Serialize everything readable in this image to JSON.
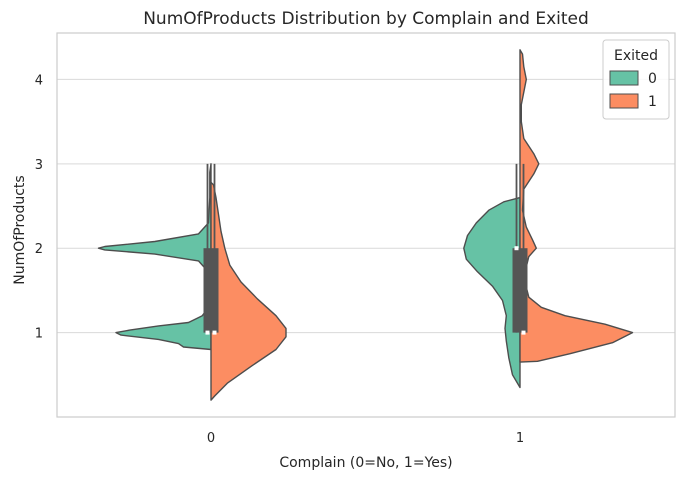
{
  "chart_data": {
    "type": "violin",
    "title": "NumOfProducts Distribution by Complain and Exited",
    "xlabel": "Complain (0=No, 1=Yes)",
    "ylabel": "NumOfProducts",
    "categories": [
      "0",
      "1"
    ],
    "y_ticks": [
      "1",
      "2",
      "3",
      "4"
    ],
    "ylim": [
      0.0,
      4.55
    ],
    "grid": true,
    "legend": {
      "title": "Exited",
      "placement": "top-right",
      "entries": [
        "0",
        "1"
      ]
    },
    "colors": {
      "0": "#66c2a5",
      "1": "#fc8d62",
      "outline": "#4d4d4d",
      "box": "#555555"
    },
    "split": true,
    "series": [
      {
        "name": "0",
        "violins": [
          {
            "category": "0",
            "y_range": [
              0.8,
              3.0
            ],
            "density": [
              [
                0.8,
                0.0
              ],
              [
                0.83,
                0.22
              ],
              [
                0.87,
                0.26
              ],
              [
                0.92,
                0.42
              ],
              [
                0.97,
                0.72
              ],
              [
                1.0,
                0.76
              ],
              [
                1.03,
                0.65
              ],
              [
                1.08,
                0.42
              ],
              [
                1.12,
                0.18
              ],
              [
                1.2,
                0.07
              ],
              [
                1.3,
                0.02
              ],
              [
                1.5,
                0.01
              ],
              [
                1.7,
                0.01
              ],
              [
                1.85,
                0.1
              ],
              [
                1.93,
                0.45
              ],
              [
                1.98,
                0.85
              ],
              [
                2.0,
                0.9
              ],
              [
                2.02,
                0.85
              ],
              [
                2.08,
                0.45
              ],
              [
                2.17,
                0.1
              ],
              [
                2.3,
                0.02
              ],
              [
                2.6,
                0.01
              ],
              [
                2.9,
                0.01
              ],
              [
                3.0,
                0.0
              ]
            ],
            "box": {
              "q1": 1.0,
              "median": 1.0,
              "q3": 2.0,
              "whisker_low": 1.0,
              "whisker_high": 3.0
            }
          },
          {
            "category": "1",
            "y_range": [
              0.35,
              2.6
            ],
            "density": [
              [
                0.35,
                0.0
              ],
              [
                0.5,
                0.06
              ],
              [
                0.7,
                0.09
              ],
              [
                0.9,
                0.11
              ],
              [
                1.05,
                0.12
              ],
              [
                1.2,
                0.11
              ],
              [
                1.38,
                0.14
              ],
              [
                1.55,
                0.22
              ],
              [
                1.72,
                0.34
              ],
              [
                1.87,
                0.43
              ],
              [
                2.0,
                0.45
              ],
              [
                2.15,
                0.42
              ],
              [
                2.3,
                0.35
              ],
              [
                2.45,
                0.25
              ],
              [
                2.55,
                0.13
              ],
              [
                2.6,
                0.0
              ]
            ],
            "box": {
              "q1": 1.0,
              "median": 2.0,
              "q3": 2.0,
              "whisker_low": 1.0,
              "whisker_high": 3.0
            }
          }
        ]
      },
      {
        "name": "1",
        "violins": [
          {
            "category": "0",
            "y_range": [
              0.2,
              2.78
            ],
            "density": [
              [
                0.2,
                0.0
              ],
              [
                0.25,
                0.03
              ],
              [
                0.4,
                0.13
              ],
              [
                0.6,
                0.32
              ],
              [
                0.8,
                0.52
              ],
              [
                0.95,
                0.6
              ],
              [
                1.05,
                0.6
              ],
              [
                1.2,
                0.52
              ],
              [
                1.4,
                0.37
              ],
              [
                1.6,
                0.24
              ],
              [
                1.8,
                0.15
              ],
              [
                2.0,
                0.11
              ],
              [
                2.2,
                0.08
              ],
              [
                2.4,
                0.06
              ],
              [
                2.6,
                0.04
              ],
              [
                2.75,
                0.02
              ],
              [
                2.78,
                0.0
              ]
            ],
            "box": {
              "q1": 1.0,
              "median": 1.0,
              "q3": 2.0,
              "whisker_low": 1.0,
              "whisker_high": 3.0
            }
          },
          {
            "category": "1",
            "y_range": [
              0.65,
              4.35
            ],
            "density": [
              [
                0.65,
                0.0
              ],
              [
                0.66,
                0.14
              ],
              [
                0.75,
                0.4
              ],
              [
                0.88,
                0.74
              ],
              [
                1.0,
                0.9
              ],
              [
                1.1,
                0.68
              ],
              [
                1.2,
                0.36
              ],
              [
                1.3,
                0.17
              ],
              [
                1.42,
                0.07
              ],
              [
                1.6,
                0.04
              ],
              [
                1.78,
                0.05
              ],
              [
                1.9,
                0.07
              ],
              [
                2.0,
                0.13
              ],
              [
                2.1,
                0.1
              ],
              [
                2.25,
                0.05
              ],
              [
                2.45,
                0.02
              ],
              [
                2.7,
                0.03
              ],
              [
                2.88,
                0.11
              ],
              [
                3.0,
                0.15
              ],
              [
                3.12,
                0.11
              ],
              [
                3.3,
                0.03
              ],
              [
                3.5,
                0.01
              ],
              [
                3.7,
                0.01
              ],
              [
                3.85,
                0.03
              ],
              [
                4.0,
                0.05
              ],
              [
                4.15,
                0.03
              ],
              [
                4.3,
                0.02
              ],
              [
                4.35,
                0.0
              ]
            ],
            "box": {
              "q1": 1.0,
              "median": 1.0,
              "q3": 2.0,
              "whisker_low": 1.0,
              "whisker_high": 3.0
            }
          }
        ]
      }
    ]
  }
}
